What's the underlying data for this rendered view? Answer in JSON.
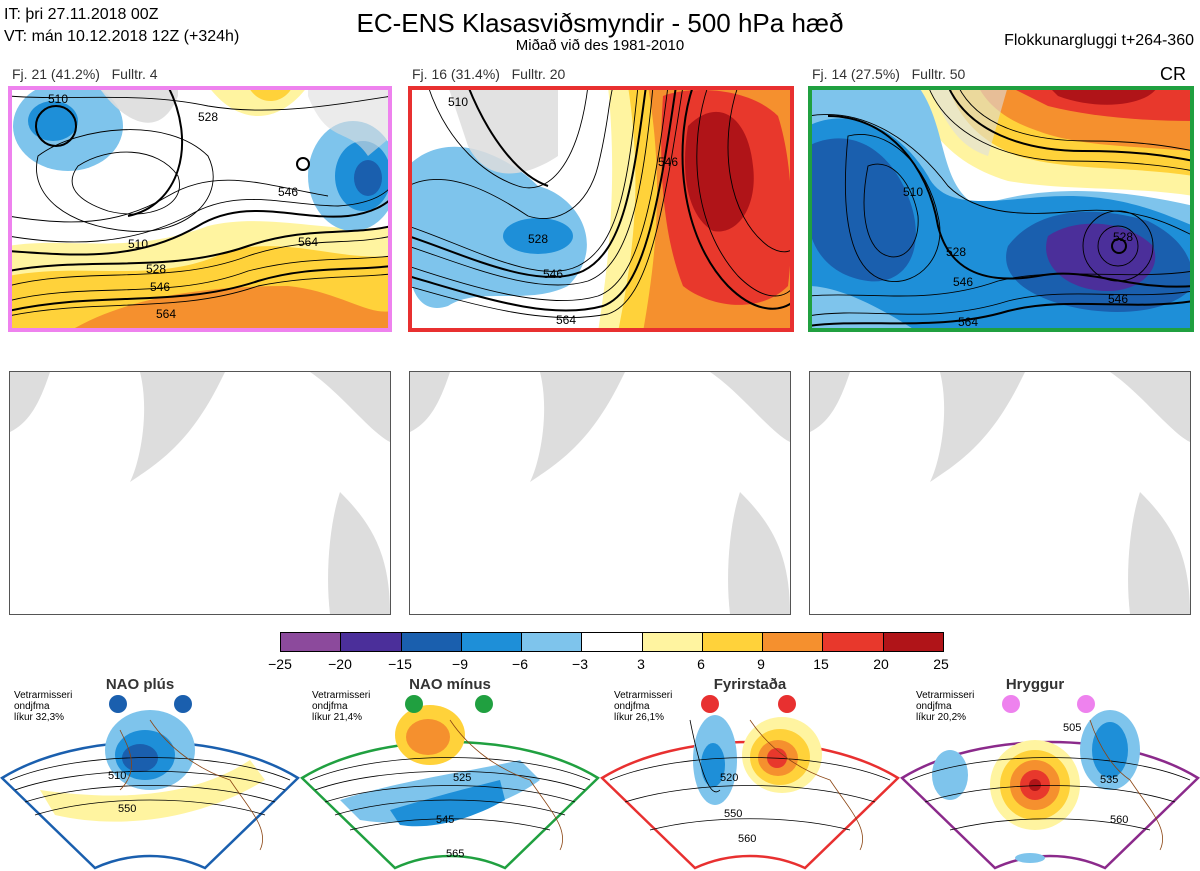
{
  "header": {
    "init_time": "IT: þri 27.11.2018 00Z",
    "valid_time": "VT: mán 10.12.2018 12Z  (+324h)",
    "title": "EC-ENS Klasasviðsmyndir - 500 hPa hæð",
    "subtitle": "Miðað við des 1981-2010",
    "window": "Flokkunargluggi t+264-360",
    "cr": "CR"
  },
  "clusters": [
    {
      "label": "Fj. 21 (41.2%)",
      "rep": "Fulltr. 4",
      "border_color": "#ee82ee",
      "contours": [
        "510",
        "528",
        "546",
        "564",
        "510",
        "528",
        "546",
        "564"
      ]
    },
    {
      "label": "Fj. 16 (31.4%)",
      "rep": "Fulltr. 20",
      "border_color": "#e83030",
      "contours": [
        "510",
        "528",
        "546",
        "564",
        "546"
      ]
    },
    {
      "label": "Fj. 14 (27.5%)",
      "rep": "Fulltr. 50",
      "border_color": "#20a040",
      "contours": [
        "510",
        "528",
        "546",
        "564",
        "528",
        "546"
      ]
    }
  ],
  "colorbar": {
    "ticks": [
      "−25",
      "−20",
      "−15",
      "−9",
      "−6",
      "−3",
      "3",
      "6",
      "9",
      "15",
      "20",
      "25"
    ],
    "colors": [
      "#8c4a9c",
      "#4b2f9a",
      "#1a5fae",
      "#1e8fd8",
      "#7ec4ec",
      "#ffffff",
      "#fff4a0",
      "#ffd23a",
      "#f5902e",
      "#e8382c",
      "#b01418"
    ]
  },
  "regimes": [
    {
      "name": "NAO plús",
      "note": [
        "Vetrarmisseri",
        "ondjfma",
        "líkur 32,3%"
      ],
      "color": "#1a5fae",
      "contours": [
        "510",
        "550"
      ]
    },
    {
      "name": "NAO mínus",
      "note": [
        "Vetrarmisseri",
        "ondjfma",
        "líkur 21,4%"
      ],
      "color": "#20a040",
      "contours": [
        "525",
        "545",
        "565"
      ]
    },
    {
      "name": "Fyrirstaða",
      "note": [
        "Vetrarmisseri",
        "ondjfma",
        "líkur 26,1%"
      ],
      "color": "#e83030",
      "contours": [
        "520",
        "550",
        "560"
      ]
    },
    {
      "name": "Hryggur",
      "note": [
        "Vetrarmisseri",
        "ondjfma",
        "líkur 20,2%"
      ],
      "color": "#ee82ee",
      "contours": [
        "505",
        "535",
        "560"
      ]
    }
  ]
}
